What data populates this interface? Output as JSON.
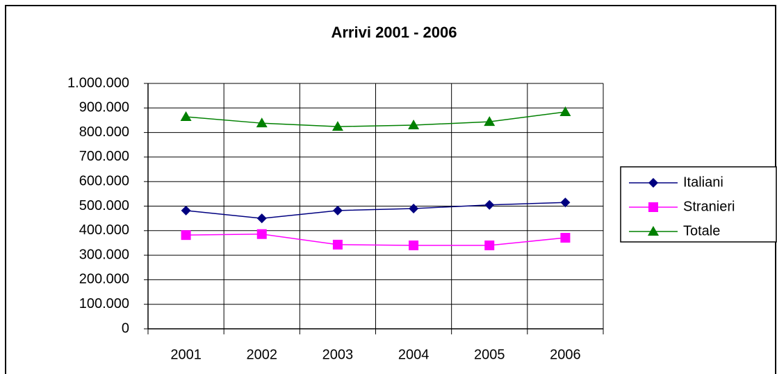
{
  "chart_data": {
    "type": "line",
    "title": "Arrivi 2001 - 2006",
    "categories": [
      "2001",
      "2002",
      "2003",
      "2004",
      "2005",
      "2006"
    ],
    "series": [
      {
        "name": "Italiani",
        "color": "#000080",
        "marker": "diamond",
        "values": [
          482000,
          450000,
          482000,
          490000,
          505000,
          515000
        ]
      },
      {
        "name": "Stranieri",
        "color": "#ff00ff",
        "marker": "square",
        "values": [
          382000,
          386000,
          343000,
          340000,
          340000,
          371000
        ]
      },
      {
        "name": "Totale",
        "color": "#008000",
        "marker": "triangle",
        "values": [
          864000,
          838000,
          824000,
          830000,
          844000,
          884000
        ]
      }
    ],
    "ylim": [
      0,
      1000000
    ],
    "yticks": [
      0,
      {
        "value": 100000,
        "label": "100.000"
      },
      {
        "value": 200000,
        "label": "200.000"
      },
      {
        "value": 300000,
        "label": "300.000"
      },
      {
        "value": 400000,
        "label": "400.000"
      },
      {
        "value": 500000,
        "label": "500.000"
      },
      {
        "value": 600000,
        "label": "600.000"
      },
      {
        "value": 700000,
        "label": "700.000"
      },
      {
        "value": 800000,
        "label": "800.000"
      },
      {
        "value": 900000,
        "label": "900.000"
      },
      {
        "value": 1000000,
        "label": "1.000.000"
      }
    ],
    "grid": true,
    "legend": "right"
  }
}
